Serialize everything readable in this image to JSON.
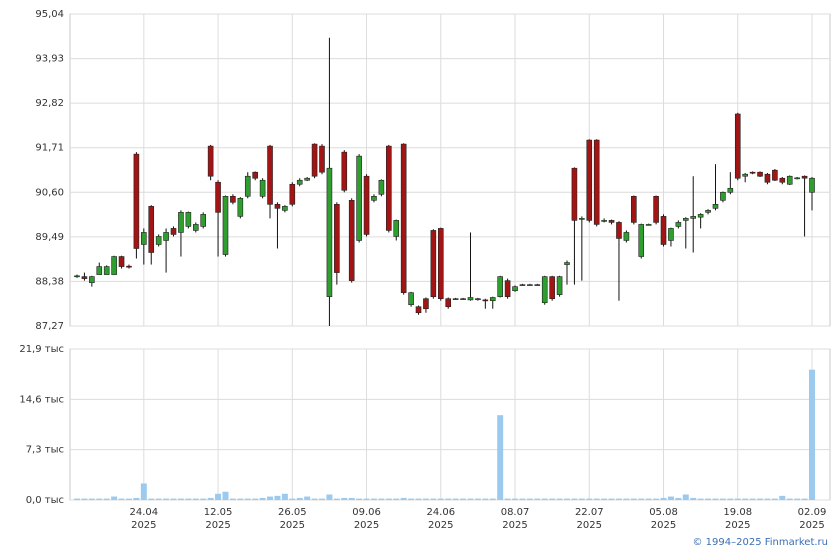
{
  "chart_data": [
    {
      "type": "candlestick",
      "open": [
        88.5,
        88.5,
        88.35,
        88.55,
        88.55,
        88.55,
        89.0,
        88.76,
        91.55,
        89.3,
        90.25,
        89.3,
        89.4,
        89.7,
        89.6,
        89.75,
        89.65,
        89.75,
        91.75,
        90.85,
        89.05,
        90.5,
        90.0,
        90.5,
        91.1,
        90.5,
        91.75,
        90.3,
        90.15,
        90.8,
        90.8,
        90.9,
        91.8,
        91.75,
        88.0,
        90.3,
        91.6,
        90.4,
        89.4,
        91.0,
        90.4,
        90.55,
        91.75,
        89.5,
        91.8,
        87.8,
        87.75,
        87.95,
        89.65,
        89.7,
        87.95,
        87.94,
        87.94,
        87.92,
        87.94,
        87.92,
        87.9,
        88.0,
        88.4,
        88.15,
        88.3,
        88.3,
        88.3,
        87.85,
        88.5,
        88.05,
        88.8,
        91.2,
        89.95,
        91.9,
        91.9,
        89.9,
        89.9,
        89.85,
        89.4,
        90.5,
        89.0,
        89.8,
        90.5,
        90.0,
        89.4,
        89.75,
        89.9,
        89.95,
        89.98,
        90.1,
        90.2,
        90.4,
        90.6,
        92.55,
        91.0,
        91.1,
        91.1,
        91.05,
        91.15,
        90.95,
        90.8,
        90.95,
        91.0,
        90.6
      ],
      "high": [
        88.55,
        88.6,
        88.52,
        88.85,
        88.78,
        89.02,
        89.02,
        88.8,
        91.6,
        89.7,
        90.28,
        89.55,
        89.7,
        89.75,
        90.15,
        90.12,
        89.85,
        90.1,
        91.78,
        90.9,
        90.52,
        90.55,
        90.48,
        91.1,
        91.12,
        90.95,
        91.78,
        90.35,
        90.28,
        90.85,
        90.95,
        90.98,
        91.82,
        91.8,
        94.45,
        90.35,
        91.65,
        90.45,
        91.55,
        91.05,
        90.55,
        90.92,
        91.78,
        89.92,
        91.82,
        88.12,
        87.78,
        87.98,
        89.68,
        89.72,
        87.98,
        87.97,
        87.97,
        89.6,
        87.97,
        87.95,
        88.0,
        88.52,
        88.45,
        88.28,
        88.32,
        88.32,
        88.32,
        88.52,
        88.52,
        88.52,
        88.9,
        91.22,
        90.0,
        91.92,
        91.92,
        89.95,
        89.92,
        89.88,
        89.65,
        90.52,
        89.82,
        89.82,
        90.52,
        90.05,
        89.72,
        89.9,
        89.98,
        91.0,
        90.08,
        90.18,
        91.3,
        90.62,
        91.1,
        92.58,
        91.08,
        91.12,
        91.12,
        91.08,
        91.18,
        90.98,
        91.02,
        90.98,
        91.02,
        90.98
      ],
      "low": [
        88.47,
        88.4,
        88.25,
        88.55,
        88.55,
        88.55,
        88.7,
        88.7,
        88.95,
        88.8,
        88.8,
        89.25,
        88.6,
        89.5,
        89.0,
        89.7,
        89.6,
        89.7,
        90.9,
        89.0,
        89.0,
        90.3,
        89.95,
        90.45,
        90.9,
        90.45,
        89.95,
        89.2,
        90.1,
        90.25,
        90.75,
        90.88,
        90.95,
        91.05,
        87.27,
        88.3,
        90.6,
        88.35,
        89.35,
        89.5,
        90.35,
        90.5,
        89.6,
        89.4,
        88.05,
        87.75,
        87.55,
        87.6,
        87.95,
        87.9,
        87.7,
        87.92,
        87.92,
        87.9,
        87.9,
        87.7,
        87.7,
        87.98,
        87.95,
        88.12,
        88.28,
        88.28,
        88.28,
        87.8,
        87.9,
        88.0,
        88.3,
        88.3,
        88.4,
        89.85,
        89.75,
        89.85,
        89.8,
        87.9,
        89.35,
        89.8,
        88.95,
        89.78,
        89.8,
        89.25,
        89.25,
        89.7,
        89.2,
        89.1,
        89.7,
        90.05,
        90.15,
        90.35,
        90.55,
        90.9,
        90.85,
        91.05,
        90.98,
        90.8,
        90.88,
        90.8,
        90.78,
        90.92,
        89.5,
        90.15
      ],
      "close": [
        88.52,
        88.45,
        88.5,
        88.75,
        88.75,
        89.0,
        88.75,
        88.74,
        89.2,
        89.6,
        89.1,
        89.5,
        89.6,
        89.55,
        90.1,
        90.1,
        89.8,
        90.05,
        91.0,
        90.1,
        90.5,
        90.35,
        90.45,
        91.0,
        90.95,
        90.9,
        90.3,
        90.2,
        90.25,
        90.3,
        90.9,
        90.95,
        91.0,
        91.1,
        91.2,
        88.6,
        90.65,
        88.4,
        91.5,
        89.55,
        90.5,
        90.9,
        89.65,
        89.9,
        88.1,
        88.1,
        87.6,
        87.7,
        88.0,
        87.95,
        87.75,
        87.95,
        87.95,
        87.98,
        87.95,
        87.9,
        87.98,
        88.5,
        88.0,
        88.25,
        88.3,
        88.3,
        88.3,
        88.5,
        87.95,
        88.5,
        88.85,
        89.9,
        89.95,
        89.9,
        89.8,
        89.9,
        89.85,
        89.45,
        89.6,
        89.85,
        89.8,
        89.8,
        89.85,
        89.3,
        89.7,
        89.85,
        89.95,
        90.0,
        90.05,
        90.15,
        90.3,
        90.6,
        90.7,
        90.95,
        91.05,
        91.08,
        91.0,
        90.85,
        90.9,
        90.85,
        91.0,
        90.96,
        90.95,
        90.95
      ],
      "up_color": "#2e9e2e",
      "down_color": "#a31414",
      "ylim": [
        87.27,
        95.04
      ],
      "yticks": [
        {
          "value": 87.27,
          "label": "87,27"
        },
        {
          "value": 88.38,
          "label": "88,38"
        },
        {
          "value": 89.49,
          "label": "89,49"
        },
        {
          "value": 90.6,
          "label": "90,60"
        },
        {
          "value": 91.71,
          "label": "91,71"
        },
        {
          "value": 92.82,
          "label": "92,82"
        },
        {
          "value": 93.93,
          "label": "93,93"
        },
        {
          "value": 95.04,
          "label": "95,04"
        }
      ],
      "grid": true
    },
    {
      "type": "bar",
      "categories": [
        null,
        null,
        null,
        null,
        null,
        null,
        null,
        null,
        null,
        [
          "24.04",
          "2025"
        ],
        null,
        null,
        null,
        null,
        null,
        null,
        null,
        null,
        null,
        [
          "12.05",
          "2025"
        ],
        null,
        null,
        null,
        null,
        null,
        null,
        null,
        null,
        null,
        [
          "26.05",
          "2025"
        ],
        null,
        null,
        null,
        null,
        null,
        null,
        null,
        null,
        null,
        [
          "09.06",
          "2025"
        ],
        null,
        null,
        null,
        null,
        null,
        null,
        null,
        null,
        null,
        [
          "24.06",
          "2025"
        ],
        null,
        null,
        null,
        null,
        null,
        null,
        null,
        null,
        null,
        [
          "08.07",
          "2025"
        ],
        null,
        null,
        null,
        null,
        null,
        null,
        null,
        null,
        null,
        [
          "22.07",
          "2025"
        ],
        null,
        null,
        null,
        null,
        null,
        null,
        null,
        null,
        null,
        [
          "05.08",
          "2025"
        ],
        null,
        null,
        null,
        null,
        null,
        null,
        null,
        null,
        null,
        [
          "19.08",
          "2025"
        ],
        null,
        null,
        null,
        null,
        null,
        null,
        null,
        null,
        null,
        [
          "02.09",
          "2025"
        ]
      ],
      "values": [
        0.2,
        0.2,
        0.2,
        0.2,
        0.2,
        0.5,
        0.2,
        0.2,
        0.3,
        2.4,
        0.2,
        0.2,
        0.2,
        0.2,
        0.2,
        0.2,
        0.2,
        0.2,
        0.3,
        0.9,
        1.2,
        0.2,
        0.2,
        0.2,
        0.2,
        0.3,
        0.5,
        0.6,
        0.9,
        0.2,
        0.3,
        0.5,
        0.2,
        0.2,
        0.8,
        0.2,
        0.3,
        0.3,
        0.2,
        0.2,
        0.2,
        0.2,
        0.2,
        0.2,
        0.3,
        0.2,
        0.2,
        0.2,
        0.2,
        0.2,
        0.2,
        0.2,
        0.2,
        0.2,
        0.2,
        0.2,
        0.2,
        12.3,
        0.2,
        0.2,
        0.2,
        0.2,
        0.2,
        0.2,
        0.2,
        0.2,
        0.2,
        0.2,
        0.2,
        0.2,
        0.2,
        0.2,
        0.2,
        0.2,
        0.2,
        0.2,
        0.2,
        0.2,
        0.2,
        0.3,
        0.5,
        0.3,
        0.8,
        0.3,
        0.2,
        0.2,
        0.2,
        0.2,
        0.2,
        0.2,
        0.2,
        0.2,
        0.2,
        0.2,
        0.2,
        0.6,
        0.2,
        0.2,
        0.2,
        18.9
      ],
      "color": "#9ccaef",
      "ylim": [
        0,
        21.9
      ],
      "yticks": [
        {
          "value": 0,
          "label": "0,0 тыс"
        },
        {
          "value": 7.3,
          "label": "7,3 тыс"
        },
        {
          "value": 14.6,
          "label": "14,6 тыс"
        },
        {
          "value": 21.9,
          "label": "21,9 тыс"
        }
      ],
      "grid": true
    }
  ],
  "footer": "© 1994–2025 Finmarket.ru"
}
